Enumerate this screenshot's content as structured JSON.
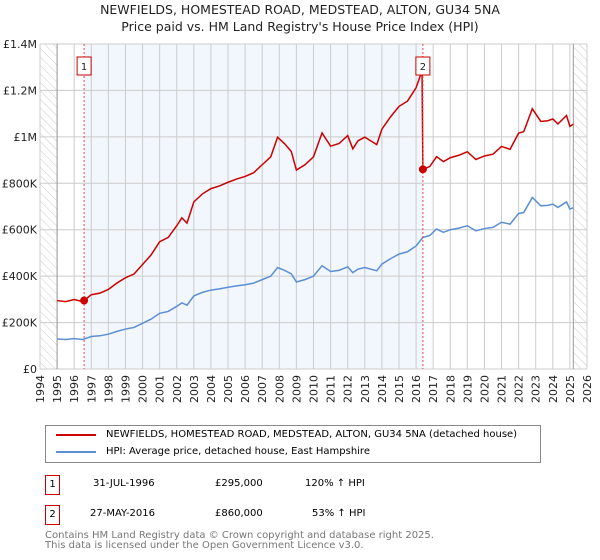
{
  "chart_data": {
    "type": "line",
    "title": "NEWFIELDS, HOMESTEAD ROAD, MEDSTEAD, ALTON, GU34 5NA",
    "subtitle": "Price paid vs. HM Land Registry's House Price Index (HPI)",
    "xlim": [
      1994,
      2026
    ],
    "ylim": [
      0,
      1400000
    ],
    "x_ticks": [
      "1994",
      "1995",
      "1996",
      "1997",
      "1998",
      "1999",
      "2000",
      "2001",
      "2002",
      "2003",
      "2004",
      "2005",
      "2006",
      "2007",
      "2008",
      "2009",
      "2010",
      "2011",
      "2012",
      "2013",
      "2014",
      "2015",
      "2016",
      "2017",
      "2018",
      "2019",
      "2020",
      "2021",
      "2022",
      "2023",
      "2024",
      "2025",
      "2026"
    ],
    "y_ticks": [
      {
        "v": 0,
        "label": "£0"
      },
      {
        "v": 200000,
        "label": "£200K"
      },
      {
        "v": 400000,
        "label": "£400K"
      },
      {
        "v": 600000,
        "label": "£600K"
      },
      {
        "v": 800000,
        "label": "£800K"
      },
      {
        "v": 1000000,
        "label": "£1M"
      },
      {
        "v": 1200000,
        "label": "£1.2M"
      },
      {
        "v": 1400000,
        "label": "£1.4M"
      }
    ],
    "grid": true,
    "hpi_series": {
      "name": "HPI: Average price, detached house, East Hampshire",
      "color": "#5b8fd4",
      "x": [
        1995,
        1995.5,
        1996,
        1996.5,
        1997,
        1997.5,
        1998,
        1998.5,
        1999,
        1999.5,
        2000,
        2000.5,
        2001,
        2001.5,
        2002,
        2002.3,
        2002.6,
        2003,
        2003.5,
        2004,
        2004.5,
        2005,
        2005.5,
        2006,
        2006.5,
        2007,
        2007.5,
        2007.9,
        2008.3,
        2008.7,
        2009,
        2009.5,
        2010,
        2010.5,
        2011,
        2011.5,
        2012,
        2012.3,
        2012.6,
        2013,
        2013.7,
        2014,
        2014.5,
        2015,
        2015.5,
        2016,
        2016.4,
        2016.8,
        2017.2,
        2017.6,
        2018,
        2018.5,
        2019,
        2019.5,
        2020,
        2020.5,
        2021,
        2021.5,
        2022,
        2022.3,
        2022.8,
        2023.3,
        2023.7,
        2024,
        2024.3,
        2024.8,
        2025,
        2025.2
      ],
      "y": [
        129000,
        127000,
        131000,
        127000,
        140000,
        143000,
        150000,
        162000,
        172000,
        179000,
        197000,
        215000,
        240000,
        248000,
        270000,
        285000,
        275000,
        315000,
        330000,
        340000,
        345000,
        352000,
        358000,
        363000,
        370000,
        385000,
        400000,
        437000,
        425000,
        410000,
        375000,
        385000,
        400000,
        445000,
        420000,
        425000,
        440000,
        415000,
        430000,
        437000,
        423000,
        452000,
        475000,
        495000,
        505000,
        530000,
        567000,
        575000,
        603000,
        589000,
        600000,
        607000,
        617000,
        595000,
        605000,
        610000,
        632000,
        624000,
        670000,
        674000,
        739000,
        703000,
        705000,
        710000,
        696000,
        720000,
        689000,
        695000
      ]
    },
    "price_series": {
      "name": "NEWFIELDS, HOMESTEAD ROAD, MEDSTEAD, ALTON, GU34 5NA (detached house)",
      "color": "#cc0000"
    },
    "sales": [
      {
        "id": "1",
        "x": 1996.58,
        "price": 295000
      },
      {
        "id": "2",
        "x": 2016.4,
        "price": 860000
      }
    ]
  },
  "title_line1": "NEWFIELDS, HOMESTEAD ROAD, MEDSTEAD, ALTON, GU34 5NA",
  "title_line2": "Price paid vs. HM Land Registry's House Price Index (HPI)",
  "legend": {
    "price": "NEWFIELDS, HOMESTEAD ROAD, MEDSTEAD, ALTON, GU34 5NA (detached house)",
    "hpi": "HPI: Average price, detached house, East Hampshire"
  },
  "transactions": [
    {
      "id": "1",
      "date": "31-JUL-1996",
      "price": "£295,000",
      "hpi": "120% ↑ HPI"
    },
    {
      "id": "2",
      "date": "27-MAY-2016",
      "price": "£860,000",
      "hpi": "53% ↑ HPI"
    }
  ],
  "footer1": "Contains HM Land Registry data © Crown copyright and database right 2025.",
  "footer2": "This data is licensed under the Open Government Licence v3.0."
}
